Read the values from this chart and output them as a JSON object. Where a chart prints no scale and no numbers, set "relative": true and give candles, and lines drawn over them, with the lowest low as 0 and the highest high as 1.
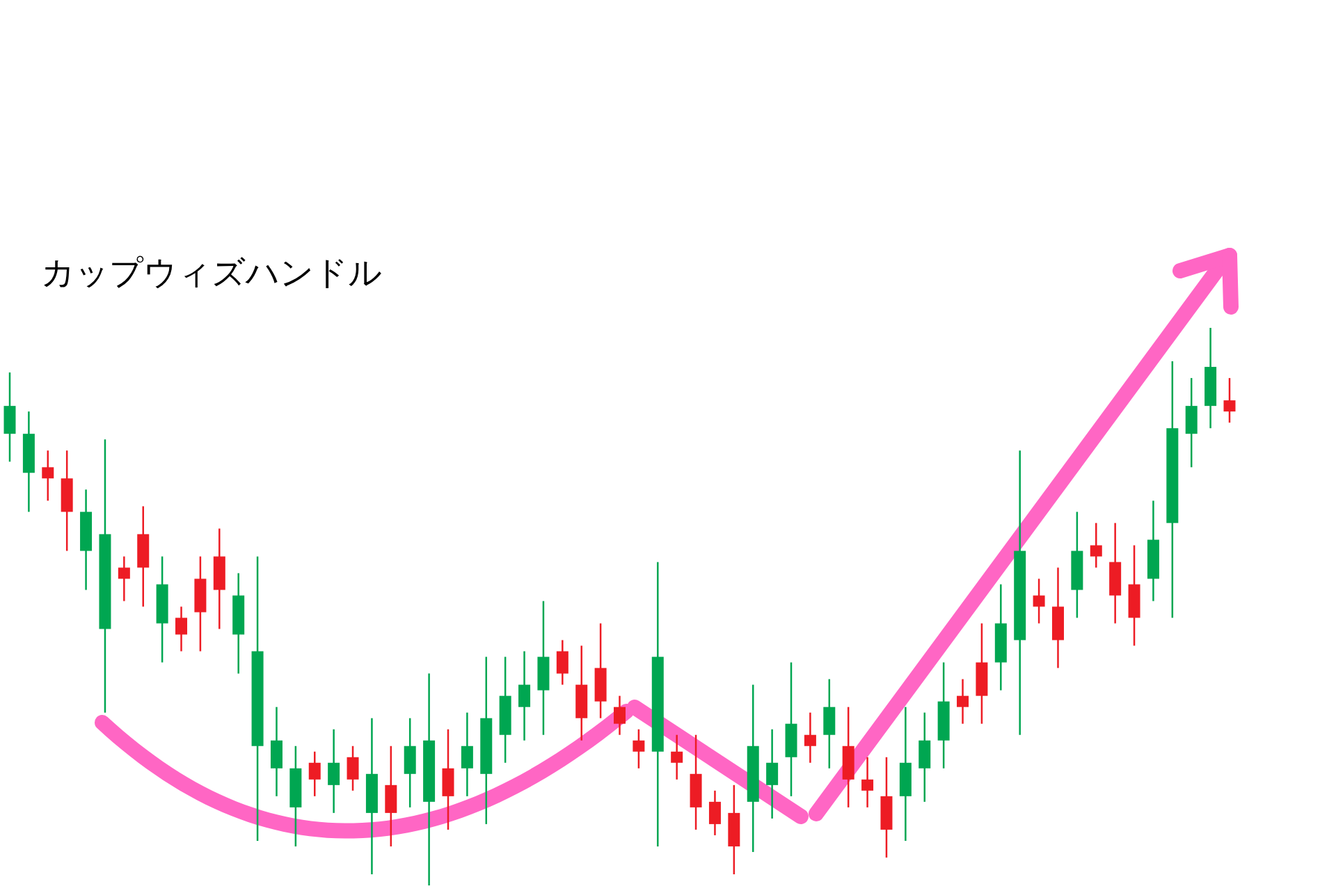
{
  "chart_data": {
    "type": "candlestick",
    "title": "カップウィズハンドル",
    "relative": true,
    "categories": [
      null,
      null,
      null,
      null,
      null,
      null,
      null,
      null,
      null,
      null,
      null,
      null,
      null,
      null,
      null,
      null,
      null,
      null,
      null,
      null,
      null,
      null,
      null,
      null,
      null,
      null,
      null,
      null,
      null,
      null,
      null,
      null,
      null,
      null,
      null,
      null,
      null,
      null,
      null,
      null,
      null,
      null,
      null,
      null,
      null,
      null,
      null,
      null,
      null,
      null,
      null,
      null,
      null,
      null,
      null,
      null,
      null,
      null,
      null,
      null,
      null,
      null,
      null,
      null,
      null
    ],
    "ohlc": [
      [
        0.81,
        0.92,
        0.76,
        0.86
      ],
      [
        0.74,
        0.85,
        0.67,
        0.81
      ],
      [
        0.75,
        0.78,
        0.69,
        0.73
      ],
      [
        0.73,
        0.78,
        0.6,
        0.67
      ],
      [
        0.6,
        0.71,
        0.53,
        0.67
      ],
      [
        0.46,
        0.8,
        0.31,
        0.63
      ],
      [
        0.57,
        0.59,
        0.51,
        0.55
      ],
      [
        0.63,
        0.68,
        0.5,
        0.57
      ],
      [
        0.47,
        0.59,
        0.4,
        0.54
      ],
      [
        0.48,
        0.5,
        0.42,
        0.45
      ],
      [
        0.55,
        0.59,
        0.42,
        0.49
      ],
      [
        0.59,
        0.64,
        0.46,
        0.53
      ],
      [
        0.45,
        0.56,
        0.38,
        0.52
      ],
      [
        0.25,
        0.59,
        0.08,
        0.42
      ],
      [
        0.21,
        0.32,
        0.16,
        0.26
      ],
      [
        0.14,
        0.25,
        0.07,
        0.21
      ],
      [
        0.22,
        0.24,
        0.16,
        0.19
      ],
      [
        0.18,
        0.28,
        0.13,
        0.22
      ],
      [
        0.23,
        0.25,
        0.17,
        0.19
      ],
      [
        0.13,
        0.3,
        0.02,
        0.2
      ],
      [
        0.18,
        0.25,
        0.07,
        0.13
      ],
      [
        0.2,
        0.3,
        0.14,
        0.25
      ],
      [
        0.15,
        0.38,
        0,
        0.26
      ],
      [
        0.21,
        0.28,
        0.1,
        0.16
      ],
      [
        0.21,
        0.31,
        0.16,
        0.25
      ],
      [
        0.2,
        0.41,
        0.11,
        0.3
      ],
      [
        0.27,
        0.41,
        0.22,
        0.34
      ],
      [
        0.32,
        0.42,
        0.26,
        0.36
      ],
      [
        0.35,
        0.51,
        0.27,
        0.41
      ],
      [
        0.42,
        0.44,
        0.36,
        0.38
      ],
      [
        0.36,
        0.43,
        0.26,
        0.3
      ],
      [
        0.39,
        0.47,
        0.3,
        0.33
      ],
      [
        0.32,
        0.34,
        0.27,
        0.29
      ],
      [
        0.26,
        0.28,
        0.21,
        0.24
      ],
      [
        0.24,
        0.58,
        0.07,
        0.41
      ],
      [
        0.24,
        0.27,
        0.19,
        0.22
      ],
      [
        0.2,
        0.27,
        0.1,
        0.14
      ],
      [
        0.15,
        0.17,
        0.09,
        0.11
      ],
      [
        0.13,
        0.18,
        0.02,
        0.07
      ],
      [
        0.15,
        0.36,
        0.06,
        0.25
      ],
      [
        0.18,
        0.28,
        0.12,
        0.22
      ],
      [
        0.23,
        0.4,
        0.16,
        0.29
      ],
      [
        0.27,
        0.31,
        0.22,
        0.25
      ],
      [
        0.27,
        0.37,
        0.21,
        0.32
      ],
      [
        0.25,
        0.32,
        0.14,
        0.19
      ],
      [
        0.19,
        0.23,
        0.14,
        0.17
      ],
      [
        0.16,
        0.23,
        0.05,
        0.1
      ],
      [
        0.16,
        0.32,
        0.08,
        0.22
      ],
      [
        0.21,
        0.31,
        0.15,
        0.26
      ],
      [
        0.26,
        0.4,
        0.21,
        0.33
      ],
      [
        0.34,
        0.37,
        0.29,
        0.32
      ],
      [
        0.4,
        0.47,
        0.29,
        0.34
      ],
      [
        0.4,
        0.54,
        0.35,
        0.47
      ],
      [
        0.44,
        0.78,
        0.27,
        0.6
      ],
      [
        0.52,
        0.55,
        0.47,
        0.5
      ],
      [
        0.5,
        0.57,
        0.39,
        0.44
      ],
      [
        0.53,
        0.67,
        0.48,
        0.6
      ],
      [
        0.61,
        0.65,
        0.57,
        0.59
      ],
      [
        0.58,
        0.65,
        0.47,
        0.52
      ],
      [
        0.54,
        0.61,
        0.43,
        0.48
      ],
      [
        0.55,
        0.69,
        0.51,
        0.62
      ],
      [
        0.65,
        0.94,
        0.48,
        0.82
      ],
      [
        0.81,
        0.91,
        0.75,
        0.86
      ],
      [
        0.86,
        1,
        0.82,
        0.93
      ],
      [
        0.87,
        0.91,
        0.83,
        0.85
      ]
    ],
    "colors": [
      "#00a651",
      "#00a651",
      "#ed1c24",
      "#ed1c24",
      "#00a651",
      "#00a651",
      "#ed1c24",
      "#ed1c24",
      "#00a651",
      "#ed1c24",
      "#ed1c24",
      "#ed1c24",
      "#00a651",
      "#00a651",
      "#00a651",
      "#00a651",
      "#ed1c24",
      "#00a651",
      "#ed1c24",
      "#00a651",
      "#ed1c24",
      "#00a651",
      "#00a651",
      "#ed1c24",
      "#00a651",
      "#00a651",
      "#00a651",
      "#00a651",
      "#00a651",
      "#ed1c24",
      "#ed1c24",
      "#ed1c24",
      "#ed1c24",
      "#ed1c24",
      "#00a651",
      "#ed1c24",
      "#ed1c24",
      "#ed1c24",
      "#ed1c24",
      "#00a651",
      "#00a651",
      "#00a651",
      "#ed1c24",
      "#00a651",
      "#ed1c24",
      "#ed1c24",
      "#ed1c24",
      "#00a651",
      "#00a651",
      "#00a651",
      "#ed1c24",
      "#ed1c24",
      "#00a651",
      "#00a651",
      "#ed1c24",
      "#ed1c24",
      "#00a651",
      "#ed1c24",
      "#ed1c24",
      "#ed1c24",
      "#00a651",
      "#00a651",
      "#00a651",
      "#00a651",
      "#ed1c24"
    ]
  }
}
